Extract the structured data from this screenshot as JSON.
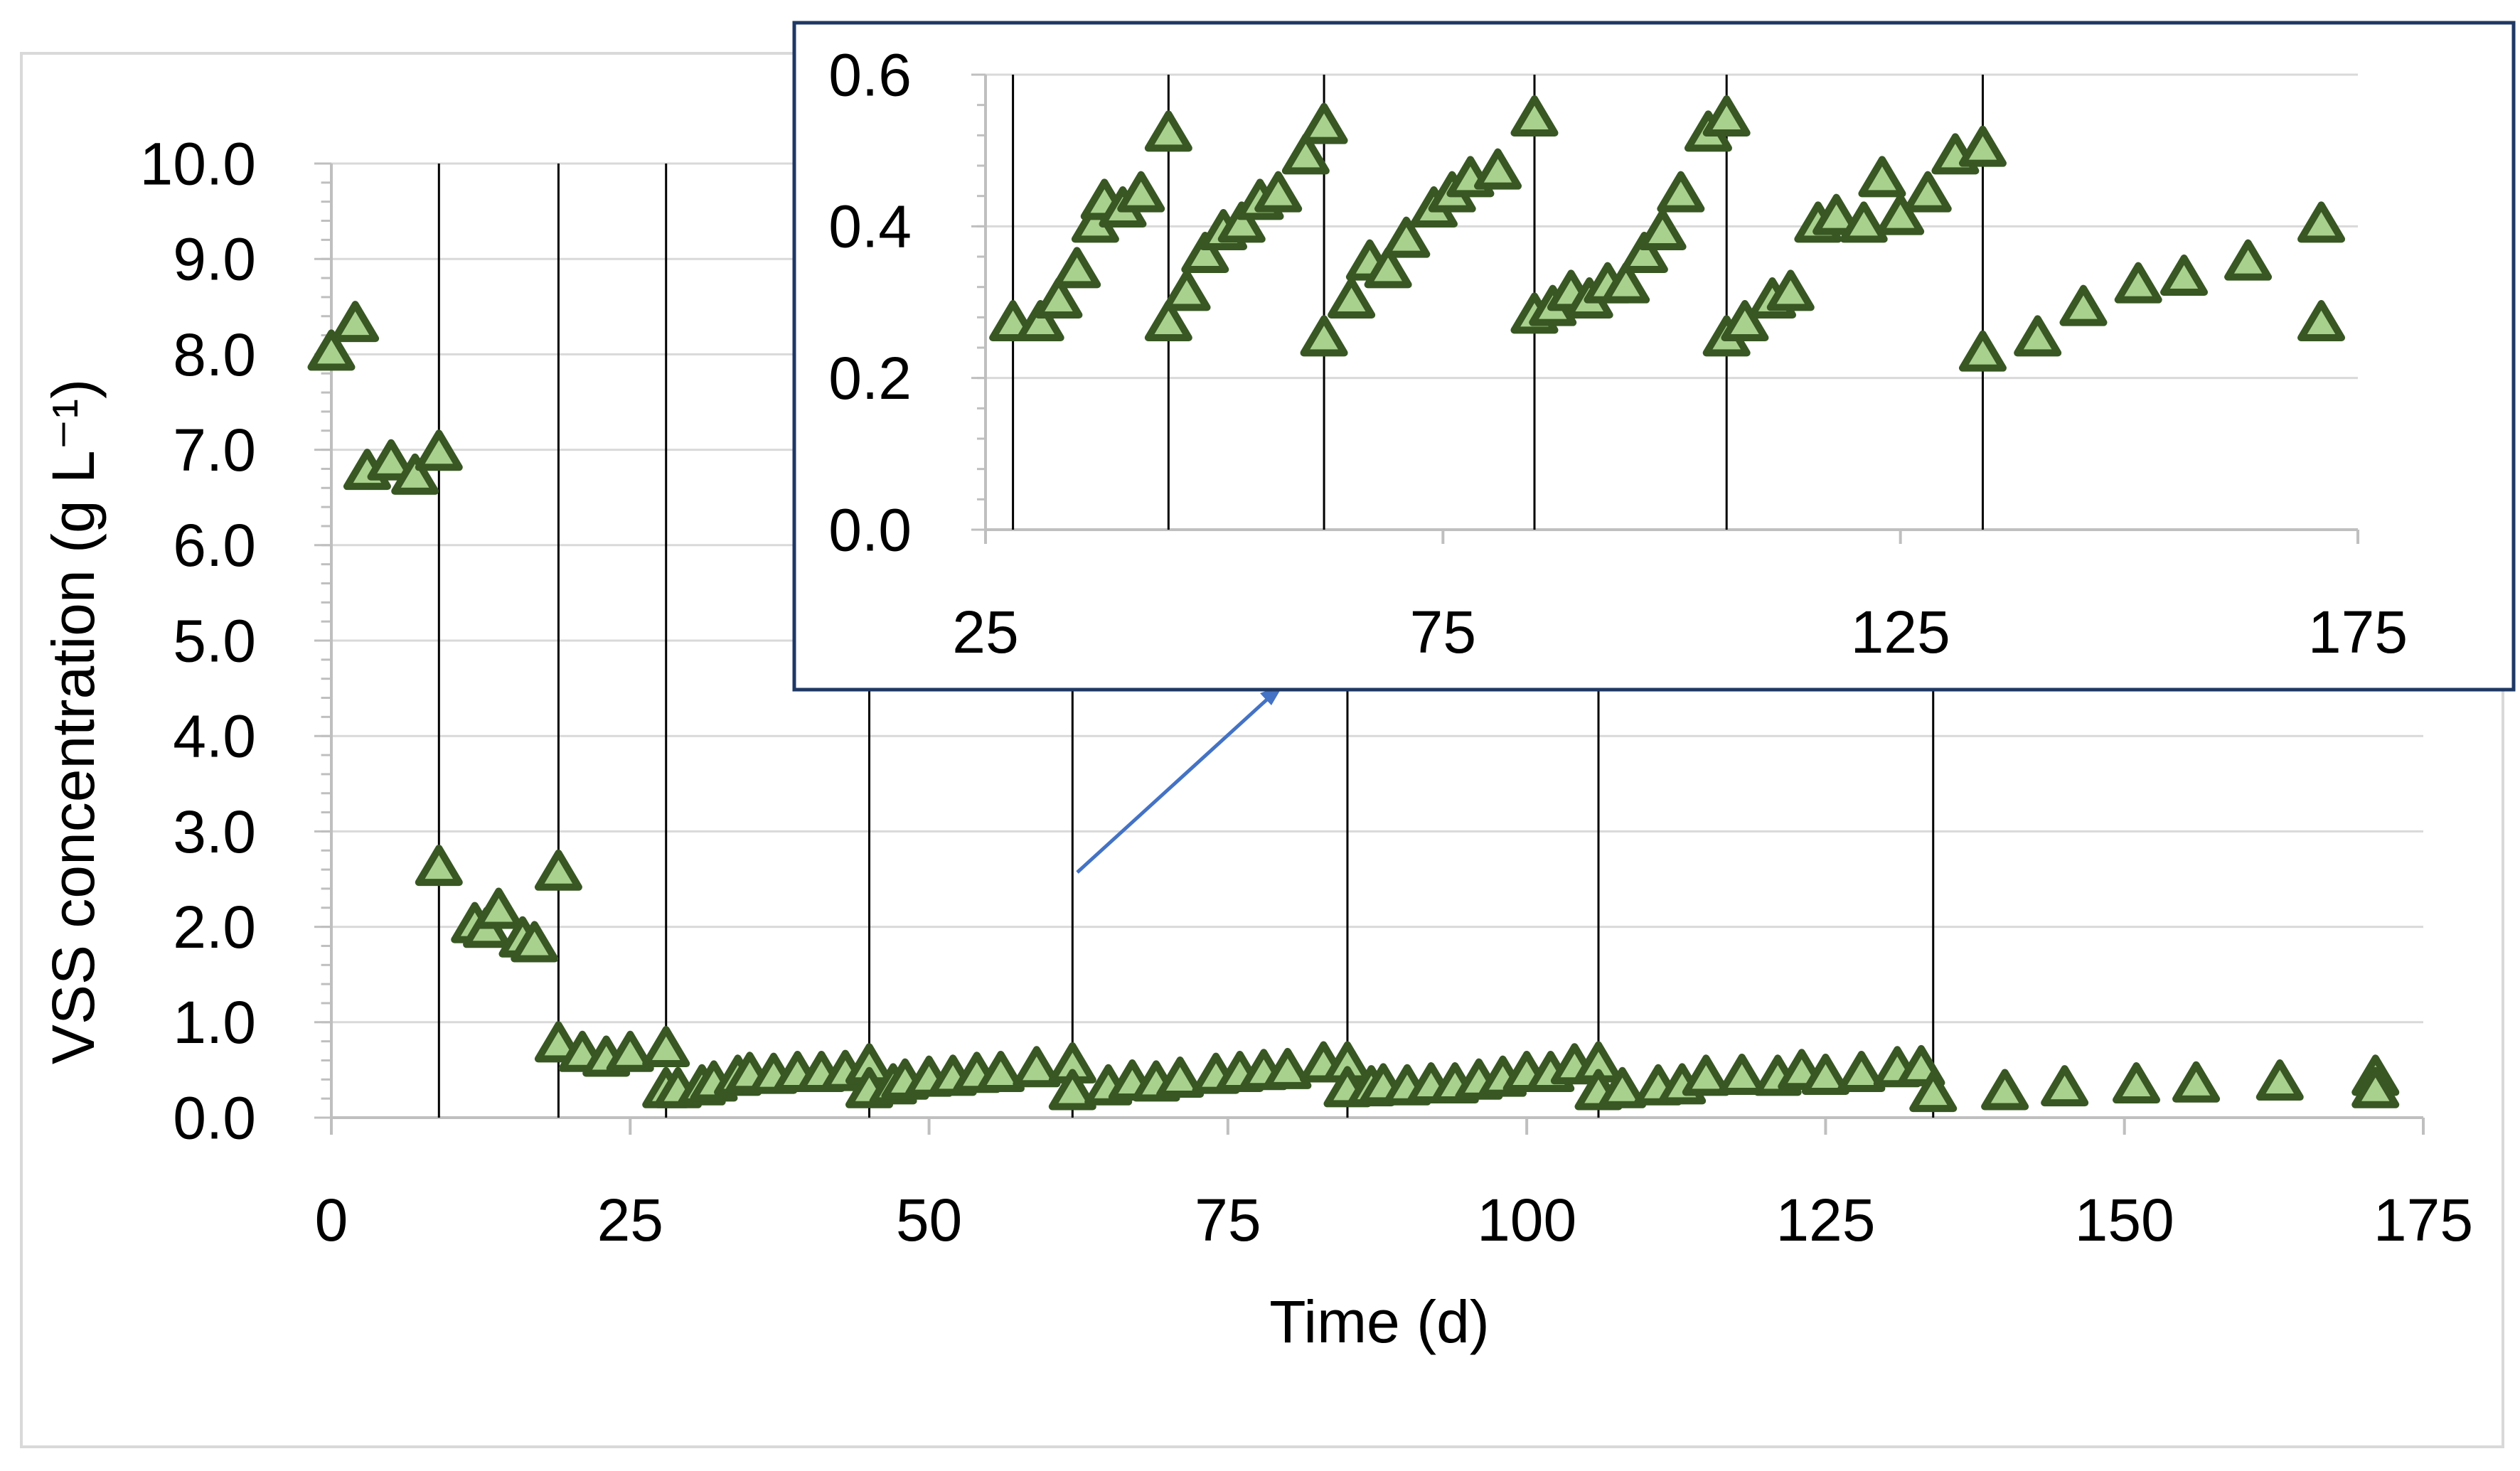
{
  "colors": {
    "marker_fill": "#a9d18e",
    "marker_stroke": "#385723",
    "gridline": "#d9d9d9",
    "axis_line": "#bfbfbf",
    "cycle_line": "#000000",
    "arrow": "#4472c4",
    "inset_border": "#1f3864",
    "frame_border": "#d9d9d9"
  },
  "chart_data": [
    {
      "id": "main",
      "type": "scatter",
      "title": "",
      "xlabel": "Time (d)",
      "ylabel": "VSS  concentration (g L⁻¹)",
      "xlim": [
        0,
        175
      ],
      "ylim": [
        0,
        10
      ],
      "x_ticks": [
        0,
        25,
        50,
        75,
        100,
        125,
        150,
        175
      ],
      "y_ticks": [
        0,
        1,
        2,
        3,
        4,
        5,
        6,
        7,
        8,
        9,
        10
      ],
      "x_tick_labels": [
        "0",
        "25",
        "50",
        "75",
        "100",
        "125",
        "150",
        "175"
      ],
      "y_tick_labels": [
        "0.0",
        "1.0",
        "2.0",
        "3.0",
        "4.0",
        "5.0",
        "6.0",
        "7.0",
        "8.0",
        "9.0",
        "10.0"
      ],
      "grid": "horizontal",
      "marker": "triangle",
      "cycle_lines_x": [
        9,
        19,
        28,
        45,
        62,
        85,
        106,
        134
      ],
      "points": [
        [
          0,
          8.0
        ],
        [
          2,
          8.3
        ],
        [
          3,
          6.75
        ],
        [
          5,
          6.85
        ],
        [
          7,
          6.7
        ],
        [
          9,
          6.95
        ],
        [
          9,
          2.6
        ],
        [
          12,
          2.0
        ],
        [
          13,
          1.95
        ],
        [
          14,
          2.15
        ],
        [
          16,
          1.85
        ],
        [
          17,
          1.8
        ],
        [
          19,
          2.55
        ],
        [
          19,
          0.75
        ],
        [
          21,
          0.65
        ],
        [
          23,
          0.6
        ],
        [
          25,
          0.65
        ],
        [
          28,
          0.7
        ],
        [
          28,
          0.27
        ],
        [
          29,
          0.27
        ],
        [
          31,
          0.3
        ],
        [
          32,
          0.34
        ],
        [
          34,
          0.4
        ],
        [
          35,
          0.43
        ],
        [
          37,
          0.42
        ],
        [
          39,
          0.44
        ],
        [
          41,
          0.44
        ],
        [
          43,
          0.45
        ],
        [
          45,
          0.52
        ],
        [
          45,
          0.27
        ],
        [
          47,
          0.31
        ],
        [
          48,
          0.36
        ],
        [
          50,
          0.39
        ],
        [
          52,
          0.4
        ],
        [
          54,
          0.43
        ],
        [
          56,
          0.44
        ],
        [
          59,
          0.49
        ],
        [
          62,
          0.53
        ],
        [
          62,
          0.25
        ],
        [
          65,
          0.3
        ],
        [
          67,
          0.35
        ],
        [
          69,
          0.34
        ],
        [
          71,
          0.38
        ],
        [
          74,
          0.42
        ],
        [
          76,
          0.44
        ],
        [
          78,
          0.46
        ],
        [
          80,
          0.47
        ],
        [
          83,
          0.54
        ],
        [
          85,
          0.54
        ],
        [
          85,
          0.28
        ],
        [
          87,
          0.29
        ],
        [
          88,
          0.31
        ],
        [
          90,
          0.3
        ],
        [
          92,
          0.32
        ],
        [
          94,
          0.32
        ],
        [
          96,
          0.36
        ],
        [
          98,
          0.39
        ],
        [
          100,
          0.44
        ],
        [
          102,
          0.44
        ],
        [
          104,
          0.52
        ],
        [
          106,
          0.54
        ],
        [
          106,
          0.25
        ],
        [
          108,
          0.27
        ],
        [
          111,
          0.3
        ],
        [
          113,
          0.31
        ],
        [
          115,
          0.4
        ],
        [
          118,
          0.41
        ],
        [
          121,
          0.4
        ],
        [
          123,
          0.46
        ],
        [
          125,
          0.41
        ],
        [
          128,
          0.44
        ],
        [
          131,
          0.49
        ],
        [
          133,
          0.5
        ],
        [
          134,
          0.23
        ],
        [
          140,
          0.25
        ],
        [
          145,
          0.29
        ],
        [
          151,
          0.32
        ],
        [
          156,
          0.33
        ],
        [
          163,
          0.35
        ],
        [
          171,
          0.4
        ],
        [
          171,
          0.27
        ]
      ]
    },
    {
      "id": "inset",
      "type": "scatter",
      "title": "",
      "xlabel": "",
      "ylabel": "",
      "xlim": [
        25,
        175
      ],
      "ylim": [
        0,
        0.6
      ],
      "x_ticks": [
        25,
        75,
        125,
        175
      ],
      "y_ticks": [
        0,
        0.2,
        0.4,
        0.6
      ],
      "x_tick_labels": [
        "25",
        "75",
        "125",
        "175"
      ],
      "y_tick_labels": [
        "0.0",
        "0.2",
        "0.4",
        "0.6"
      ],
      "grid": "horizontal",
      "marker": "triangle",
      "cycle_lines_x": [
        28,
        45,
        62,
        85,
        106,
        134
      ],
      "points": [
        [
          28,
          0.27
        ],
        [
          31,
          0.27
        ],
        [
          33,
          0.3
        ],
        [
          35,
          0.34
        ],
        [
          37,
          0.4
        ],
        [
          38,
          0.43
        ],
        [
          40,
          0.42
        ],
        [
          42,
          0.44
        ],
        [
          45,
          0.52
        ],
        [
          45,
          0.27
        ],
        [
          47,
          0.31
        ],
        [
          49,
          0.36
        ],
        [
          51,
          0.39
        ],
        [
          53,
          0.4
        ],
        [
          55,
          0.43
        ],
        [
          57,
          0.44
        ],
        [
          60,
          0.49
        ],
        [
          62,
          0.53
        ],
        [
          62,
          0.25
        ],
        [
          65,
          0.3
        ],
        [
          67,
          0.35
        ],
        [
          69,
          0.34
        ],
        [
          71,
          0.38
        ],
        [
          74,
          0.42
        ],
        [
          76,
          0.44
        ],
        [
          78,
          0.46
        ],
        [
          81,
          0.47
        ],
        [
          85,
          0.54
        ],
        [
          85,
          0.28
        ],
        [
          87,
          0.29
        ],
        [
          89,
          0.31
        ],
        [
          91,
          0.3
        ],
        [
          93,
          0.32
        ],
        [
          95,
          0.32
        ],
        [
          97,
          0.36
        ],
        [
          99,
          0.39
        ],
        [
          101,
          0.44
        ],
        [
          104,
          0.52
        ],
        [
          106,
          0.54
        ],
        [
          106,
          0.25
        ],
        [
          108,
          0.27
        ],
        [
          111,
          0.3
        ],
        [
          113,
          0.31
        ],
        [
          116,
          0.4
        ],
        [
          118,
          0.41
        ],
        [
          121,
          0.4
        ],
        [
          123,
          0.46
        ],
        [
          125,
          0.41
        ],
        [
          128,
          0.44
        ],
        [
          131,
          0.49
        ],
        [
          134,
          0.5
        ],
        [
          134,
          0.23
        ],
        [
          140,
          0.25
        ],
        [
          145,
          0.29
        ],
        [
          151,
          0.32
        ],
        [
          156,
          0.33
        ],
        [
          163,
          0.35
        ],
        [
          171,
          0.4
        ],
        [
          171,
          0.27
        ]
      ]
    }
  ]
}
